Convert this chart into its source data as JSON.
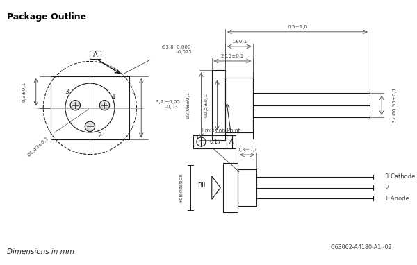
{
  "title": "Package Outline",
  "footer_text": "Dimensions in mm",
  "ref_code": "C63062-A4180-A1 -02",
  "bg_color": "#ffffff",
  "line_color": "#1a1a1a",
  "dim_color": "#444444"
}
